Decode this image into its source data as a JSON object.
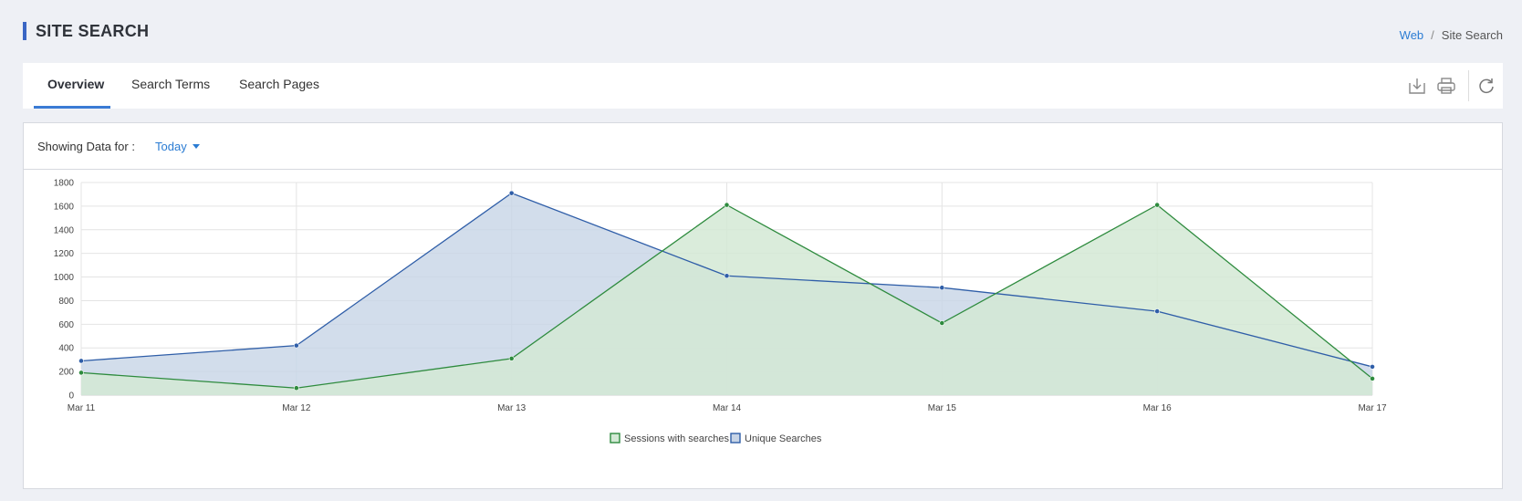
{
  "page": {
    "title": "SITE SEARCH"
  },
  "breadcrumb": {
    "items": [
      "Web",
      "Site Search"
    ]
  },
  "tabs": [
    {
      "label": "Overview",
      "active": true
    },
    {
      "label": "Search Terms",
      "active": false
    },
    {
      "label": "Search Pages",
      "active": false
    }
  ],
  "toolbar": {
    "icons": [
      "download-icon",
      "print-icon",
      "refresh-icon"
    ]
  },
  "filter": {
    "label": "Showing Data for :",
    "value": "Today"
  },
  "colors": {
    "accent": "#3a66c4",
    "link": "#2b7cd3",
    "sessions_line": "#2e8b3e",
    "sessions_fill": "#d3e9d5",
    "unique_line": "#2f5ea8",
    "unique_fill": "#c7d4e6"
  },
  "chart_data": {
    "type": "area",
    "categories": [
      "Mar 11",
      "Mar 12",
      "Mar 13",
      "Mar 14",
      "Mar 15",
      "Mar 16",
      "Mar 17"
    ],
    "series": [
      {
        "name": "Sessions with searches",
        "values": [
          190,
          60,
          310,
          1610,
          610,
          1610,
          140
        ]
      },
      {
        "name": "Unique Searches",
        "values": [
          290,
          420,
          1710,
          1010,
          910,
          710,
          240
        ]
      }
    ],
    "ylim": [
      0,
      1800
    ],
    "yticks": [
      0,
      200,
      400,
      600,
      800,
      1000,
      1200,
      1400,
      1600,
      1800
    ],
    "grid": true,
    "legend": "bottom-center"
  }
}
